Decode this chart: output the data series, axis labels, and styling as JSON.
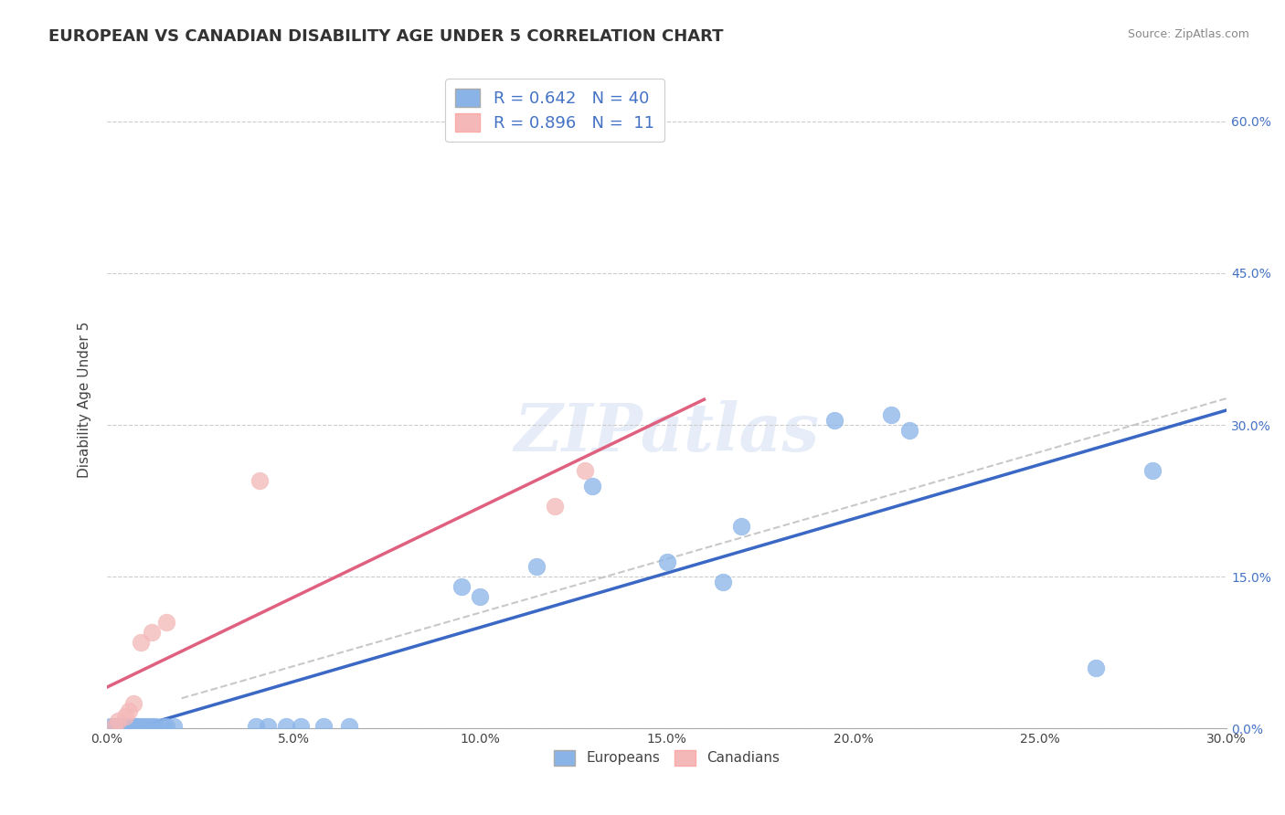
{
  "title": "EUROPEAN VS CANADIAN DISABILITY AGE UNDER 5 CORRELATION CHART",
  "source": "Source: ZipAtlas.com",
  "ylabel_label": "Disability Age Under 5",
  "xlim": [
    0.0,
    0.3
  ],
  "ylim": [
    0.0,
    0.65
  ],
  "ytick_labels": [
    "0.0%",
    "15.0%",
    "30.0%",
    "45.0%",
    "60.0%"
  ],
  "ytick_values": [
    0.0,
    0.15,
    0.3,
    0.45,
    0.6
  ],
  "xtick_values": [
    0.0,
    0.05,
    0.1,
    0.15,
    0.2,
    0.25,
    0.3
  ],
  "european_x": [
    0.001,
    0.002,
    0.002,
    0.003,
    0.003,
    0.004,
    0.004,
    0.005,
    0.005,
    0.006,
    0.006,
    0.007,
    0.008,
    0.008,
    0.009,
    0.01,
    0.011,
    0.012,
    0.013,
    0.015,
    0.016,
    0.018,
    0.04,
    0.043,
    0.048,
    0.052,
    0.058,
    0.065,
    0.095,
    0.1,
    0.115,
    0.13,
    0.15,
    0.165,
    0.17,
    0.195,
    0.21,
    0.215,
    0.265,
    0.28
  ],
  "european_y": [
    0.002,
    0.002,
    0.002,
    0.002,
    0.002,
    0.002,
    0.002,
    0.002,
    0.002,
    0.002,
    0.002,
    0.002,
    0.002,
    0.002,
    0.002,
    0.002,
    0.002,
    0.002,
    0.002,
    0.002,
    0.002,
    0.002,
    0.002,
    0.002,
    0.002,
    0.002,
    0.002,
    0.002,
    0.14,
    0.13,
    0.16,
    0.24,
    0.165,
    0.145,
    0.2,
    0.305,
    0.31,
    0.295,
    0.06,
    0.255
  ],
  "canadian_x": [
    0.002,
    0.003,
    0.005,
    0.006,
    0.007,
    0.009,
    0.012,
    0.016,
    0.041,
    0.12,
    0.128
  ],
  "canadian_y": [
    0.002,
    0.008,
    0.012,
    0.018,
    0.025,
    0.085,
    0.095,
    0.105,
    0.245,
    0.22,
    0.255
  ],
  "european_color": "#8ab4e8",
  "canadian_color": "#f4b8b8",
  "european_line_color": "#3a68c4",
  "canadian_line_color": "#e06080",
  "trend_line_color": "#bbbbbb",
  "R_european": 0.642,
  "N_european": 40,
  "R_canadian": 0.896,
  "N_canadian": 11,
  "legend_label_1": "Europeans",
  "legend_label_2": "Canadians",
  "watermark": "ZIPatlas",
  "title_fontsize": 13,
  "axis_label_fontsize": 11,
  "tick_fontsize": 10,
  "legend_fontsize": 13
}
